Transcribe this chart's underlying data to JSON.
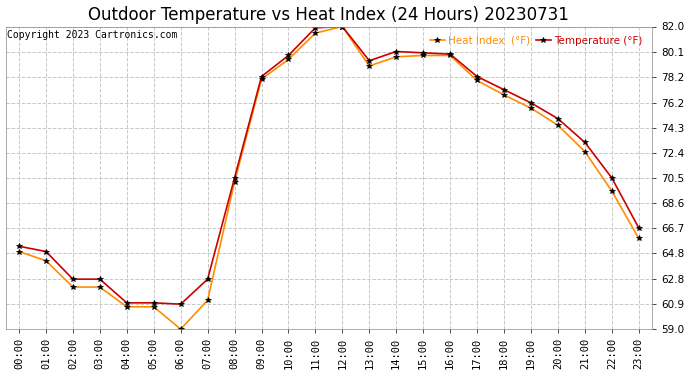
{
  "title": "Outdoor Temperature vs Heat Index (24 Hours) 20230731",
  "copyright": "Copyright 2023 Cartronics.com",
  "legend_heat": "Heat Index  (°F)",
  "legend_temp": "Temperature (°F)",
  "hours": [
    "00:00",
    "01:00",
    "02:00",
    "03:00",
    "04:00",
    "05:00",
    "06:00",
    "07:00",
    "08:00",
    "09:00",
    "10:00",
    "11:00",
    "12:00",
    "13:00",
    "14:00",
    "15:00",
    "16:00",
    "17:00",
    "18:00",
    "19:00",
    "20:00",
    "21:00",
    "22:00",
    "23:00"
  ],
  "temperature": [
    65.3,
    64.9,
    62.8,
    62.8,
    61.0,
    61.0,
    60.9,
    62.8,
    70.5,
    78.2,
    79.8,
    81.9,
    82.0,
    79.4,
    80.1,
    80.0,
    79.9,
    78.2,
    77.2,
    76.2,
    75.0,
    73.2,
    70.5,
    66.7
  ],
  "heat_index": [
    64.9,
    64.2,
    62.2,
    62.2,
    60.7,
    60.7,
    59.0,
    61.2,
    70.2,
    78.0,
    79.5,
    81.5,
    82.0,
    79.0,
    79.7,
    79.8,
    79.8,
    77.9,
    76.8,
    75.8,
    74.5,
    72.5,
    69.5,
    65.9
  ],
  "ylim": [
    59.0,
    82.0
  ],
  "yticks": [
    59.0,
    60.9,
    62.8,
    64.8,
    66.7,
    68.6,
    70.5,
    72.4,
    74.3,
    76.2,
    78.2,
    80.1,
    82.0
  ],
  "temp_color": "#cc0000",
  "heat_color": "#ff8c00",
  "background_color": "#ffffff",
  "grid_color": "#c8c8c8",
  "title_fontsize": 12,
  "label_fontsize": 7.5,
  "marker": "*",
  "marker_size": 4
}
